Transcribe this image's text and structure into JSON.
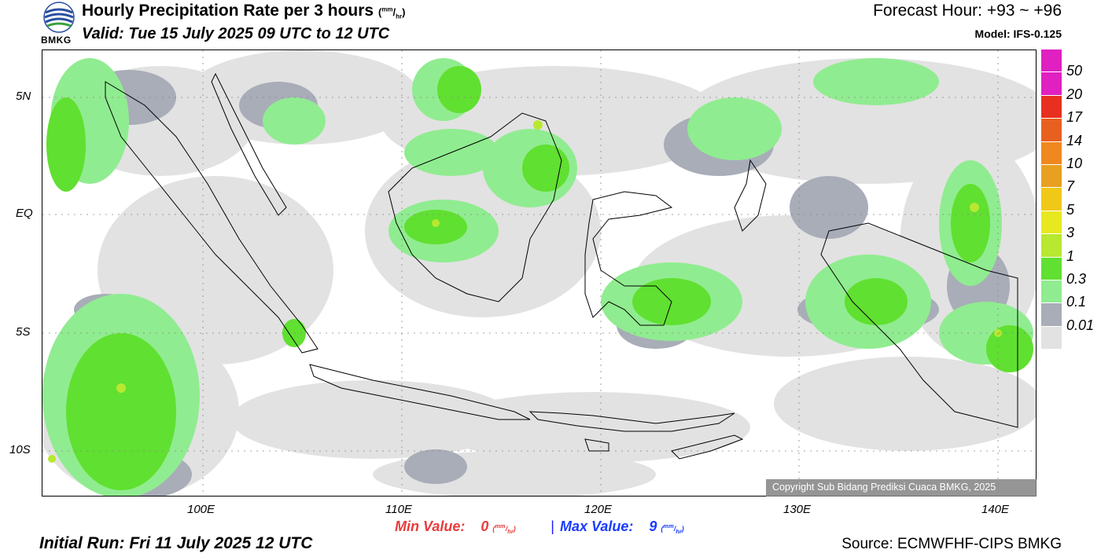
{
  "header": {
    "title": "Hourly Precipitation Rate per 3 hours",
    "unit_numer": "mm",
    "unit_denom": "hr",
    "valid": "Valid: Tue 15 July 2025 09 UTC to 12 UTC",
    "forecast_hour": "Forecast Hour: +93 ~ +96",
    "model": "Model: IFS-0.125",
    "logo_text": "BMKG"
  },
  "map": {
    "lat_labels": [
      "5N",
      "EQ",
      "5S",
      "10S"
    ],
    "lon_labels": [
      "100E",
      "110E",
      "120E",
      "130E",
      "140E"
    ],
    "copyright": "Copyright Sub Bidang Prediksi Cuaca BMKG, 2025"
  },
  "legend": {
    "levels": [
      {
        "label": "50",
        "color": "#e020c0"
      },
      {
        "label": "20",
        "color": "#e83020"
      },
      {
        "label": "17",
        "color": "#e86020"
      },
      {
        "label": "14",
        "color": "#f08820"
      },
      {
        "label": "10",
        "color": "#e8a020"
      },
      {
        "label": "7",
        "color": "#f0c818"
      },
      {
        "label": "5",
        "color": "#e8e820"
      },
      {
        "label": "3",
        "color": "#b8e830"
      },
      {
        "label": "1",
        "color": "#60e030"
      },
      {
        "label": "0.3",
        "color": "#90ec90"
      },
      {
        "label": "0.1",
        "color": "#a8adb8"
      },
      {
        "label": "0.01",
        "color": "#e2e2e2"
      }
    ]
  },
  "footer": {
    "min_label": "Min Value:",
    "min_value": "0",
    "max_label": "Max Value:",
    "max_value": "9",
    "separator": "|",
    "unit_numer": "mm",
    "unit_denom": "hr",
    "initial_run": "Initial Run: Fri 11 July 2025 12 UTC",
    "source": "Source: ECMWFHF-CIPS BMKG"
  }
}
